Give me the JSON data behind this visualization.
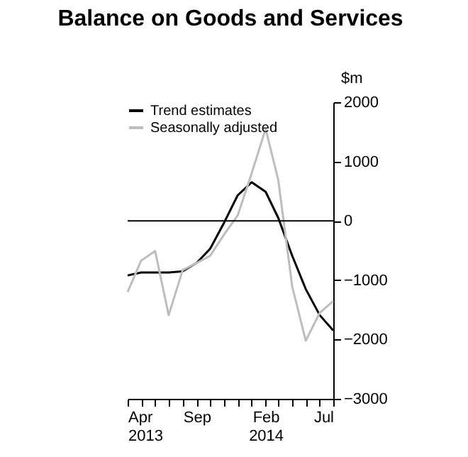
{
  "chart_data": {
    "type": "line",
    "title": "Balance on Goods and Services",
    "ylabel": "$m",
    "x": [
      "2013-04",
      "2013-05",
      "2013-06",
      "2013-07",
      "2013-08",
      "2013-09",
      "2013-10",
      "2013-11",
      "2013-12",
      "2014-01",
      "2014-02",
      "2014-03",
      "2014-04",
      "2014-05",
      "2014-06",
      "2014-07"
    ],
    "series": [
      {
        "name": "Trend estimates",
        "color": "#000000",
        "values": [
          -920,
          -870,
          -870,
          -870,
          -850,
          -710,
          -470,
          -30,
          430,
          650,
          490,
          50,
          -590,
          -1150,
          -1590,
          -1850
        ]
      },
      {
        "name": "Seasonally adjusted",
        "color": "#bdbdbd",
        "values": [
          -1200,
          -670,
          -510,
          -1590,
          -830,
          -710,
          -590,
          -230,
          90,
          800,
          1550,
          690,
          -1110,
          -2020,
          -1550,
          -1350
        ]
      }
    ],
    "xlim": [
      "2013-04",
      "2014-07"
    ],
    "xticks": [
      {
        "value": "2013-04",
        "label": "Apr 2013"
      },
      {
        "value": "2013-05",
        "label": null
      },
      {
        "value": "2013-06",
        "label": null
      },
      {
        "value": "2013-07",
        "label": null
      },
      {
        "value": "2013-08",
        "label": null
      },
      {
        "value": "2013-09",
        "label": "Sep"
      },
      {
        "value": "2013-10",
        "label": null
      },
      {
        "value": "2013-11",
        "label": null
      },
      {
        "value": "2013-12",
        "label": null
      },
      {
        "value": "2014-01",
        "label": null
      },
      {
        "value": "2014-02",
        "label": "Feb 2014"
      },
      {
        "value": "2014-03",
        "label": null
      },
      {
        "value": "2014-04",
        "label": null
      },
      {
        "value": "2014-05",
        "label": null
      },
      {
        "value": "2014-06",
        "label": null
      },
      {
        "value": "2014-07",
        "label": "Jul"
      }
    ],
    "ylim": [
      -3000,
      2000
    ],
    "yticks": [
      -3000,
      -2000,
      -1000,
      0,
      1000,
      2000
    ],
    "ref_lines": [
      {
        "axis": "y",
        "value": 0,
        "color": "#000000"
      }
    ],
    "grid": false,
    "legend": "top left",
    "marker": "none",
    "line_style": "solid"
  }
}
